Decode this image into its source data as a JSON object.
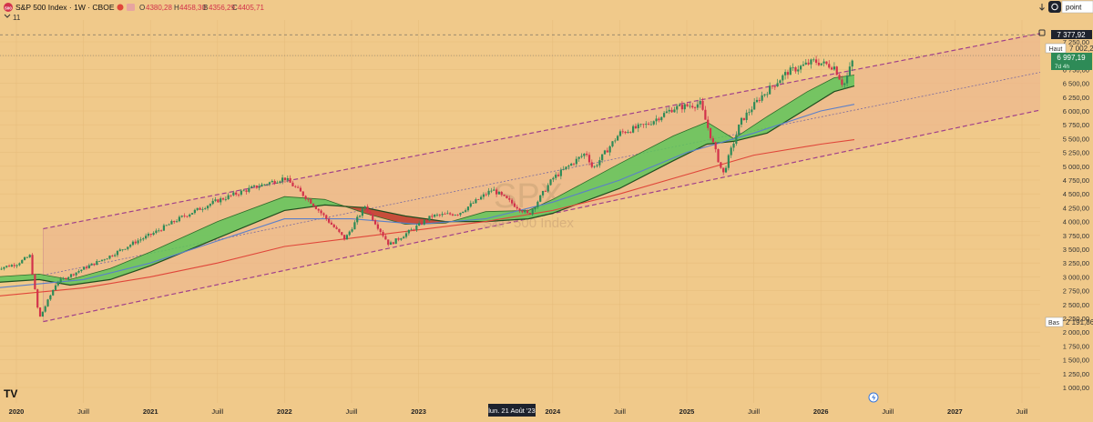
{
  "header": {
    "title": "S&P 500 Index · 1W · CBOE",
    "ohlc": [
      {
        "key": "O",
        "value": "4380,28"
      },
      {
        "key": "H",
        "value": "4458,30"
      },
      {
        "key": "B",
        "value": "4356,29"
      },
      {
        "key": "C",
        "value": "4405,71"
      }
    ],
    "indicator_count": "11",
    "search_value": "point"
  },
  "watermark": {
    "symbol": "SPX",
    "name": "S&P 500 Index"
  },
  "colors": {
    "background": "#f0c98a",
    "channel_fill": "#edb88e",
    "channel_line": "#a0408a",
    "up_candle": "#2e8b57",
    "down_candle": "#d2324b",
    "ribbon_green": "#5fc55a",
    "ribbon_red": "#c0392b",
    "ma_blue": "#5b7fc9",
    "ma_red": "#e0463a"
  },
  "price_labels": {
    "top_marker": "7 377,92",
    "haut_label": "Haut",
    "haut_value": "7 002,28",
    "current_value": "6 997,19",
    "current_sub": "7d 4h",
    "bas_label": "Bas",
    "bas_value": "2 191,86"
  },
  "crosshair_date": "lun. 21 Août '23",
  "chart_data": {
    "type": "candlestick",
    "title": "S&P 500 Index · 1W · CBOE",
    "ylim": [
      1000,
      7500
    ],
    "y_ticks": [
      "1 000,00",
      "1 250,00",
      "1 500,00",
      "1 750,00",
      "2 000,00",
      "2 250,00",
      "2 500,00",
      "2 750,00",
      "3 000,00",
      "3 250,00",
      "3 500,00",
      "3 750,00",
      "4 000,00",
      "4 250,00",
      "4 500,00",
      "4 750,00",
      "5 000,00",
      "5 250,00",
      "5 500,00",
      "5 750,00",
      "6 000,00",
      "6 250,00",
      "6 500,00",
      "6 750,00",
      "7 000,00",
      "7 250,00"
    ],
    "x_ticks": [
      {
        "label": "2020",
        "t": 2020.0,
        "bold": true
      },
      {
        "label": "Juill",
        "t": 2020.5
      },
      {
        "label": "2021",
        "t": 2021.0,
        "bold": true
      },
      {
        "label": "Juill",
        "t": 2021.5
      },
      {
        "label": "2022",
        "t": 2022.0,
        "bold": true
      },
      {
        "label": "Juill",
        "t": 2022.5
      },
      {
        "label": "2023",
        "t": 2023.0,
        "bold": true
      },
      {
        "label": "2024",
        "t": 2024.0,
        "bold": true
      },
      {
        "label": "Juill",
        "t": 2024.5
      },
      {
        "label": "2025",
        "t": 2025.0,
        "bold": true
      },
      {
        "label": "Juill",
        "t": 2025.5
      },
      {
        "label": "2026",
        "t": 2026.0,
        "bold": true
      },
      {
        "label": "Juill",
        "t": 2026.5
      },
      {
        "label": "2027",
        "t": 2027.0,
        "bold": true
      },
      {
        "label": "Juill",
        "t": 2027.5
      }
    ],
    "price_path": [
      [
        2019.85,
        3150
      ],
      [
        2020.0,
        3230
      ],
      [
        2020.1,
        3380
      ],
      [
        2020.17,
        2240
      ],
      [
        2020.3,
        2900
      ],
      [
        2020.5,
        3150
      ],
      [
        2020.7,
        3380
      ],
      [
        2020.9,
        3650
      ],
      [
        2021.0,
        3760
      ],
      [
        2021.25,
        4100
      ],
      [
        2021.5,
        4380
      ],
      [
        2021.75,
        4600
      ],
      [
        2022.0,
        4790
      ],
      [
        2022.2,
        4350
      ],
      [
        2022.45,
        3680
      ],
      [
        2022.6,
        4280
      ],
      [
        2022.78,
        3580
      ],
      [
        2022.95,
        3850
      ],
      [
        2023.1,
        4100
      ],
      [
        2023.3,
        4150
      ],
      [
        2023.55,
        4580
      ],
      [
        2023.82,
        4120
      ],
      [
        2024.0,
        4780
      ],
      [
        2024.25,
        5250
      ],
      [
        2024.3,
        4950
      ],
      [
        2024.5,
        5600
      ],
      [
        2024.7,
        5750
      ],
      [
        2024.9,
        6050
      ],
      [
        2025.1,
        6130
      ],
      [
        2025.27,
        4850
      ],
      [
        2025.4,
        5800
      ],
      [
        2025.55,
        6250
      ],
      [
        2025.75,
        6700
      ],
      [
        2025.95,
        6900
      ],
      [
        2026.1,
        6800
      ],
      [
        2026.17,
        6450
      ],
      [
        2026.25,
        6997
      ]
    ],
    "ma_fast": [
      [
        2019.85,
        3000
      ],
      [
        2020.17,
        3050
      ],
      [
        2020.4,
        2950
      ],
      [
        2020.7,
        3150
      ],
      [
        2021.0,
        3450
      ],
      [
        2021.5,
        4000
      ],
      [
        2022.0,
        4450
      ],
      [
        2022.3,
        4400
      ],
      [
        2022.6,
        4150
      ],
      [
        2022.9,
        3950
      ],
      [
        2023.2,
        3970
      ],
      [
        2023.5,
        4180
      ],
      [
        2023.82,
        4200
      ],
      [
        2024.0,
        4400
      ],
      [
        2024.5,
        5050
      ],
      [
        2024.9,
        5550
      ],
      [
        2025.15,
        5800
      ],
      [
        2025.35,
        5500
      ],
      [
        2025.6,
        5900
      ],
      [
        2025.9,
        6350
      ],
      [
        2026.1,
        6600
      ],
      [
        2026.25,
        6650
      ]
    ],
    "ma_slow": [
      [
        2019.85,
        2900
      ],
      [
        2020.17,
        2950
      ],
      [
        2020.4,
        2850
      ],
      [
        2020.7,
        2950
      ],
      [
        2021.0,
        3200
      ],
      [
        2021.5,
        3700
      ],
      [
        2022.0,
        4200
      ],
      [
        2022.3,
        4300
      ],
      [
        2022.6,
        4250
      ],
      [
        2022.9,
        4100
      ],
      [
        2023.2,
        4000
      ],
      [
        2023.5,
        4000
      ],
      [
        2023.82,
        4050
      ],
      [
        2024.0,
        4150
      ],
      [
        2024.5,
        4600
      ],
      [
        2024.9,
        5100
      ],
      [
        2025.15,
        5400
      ],
      [
        2025.35,
        5450
      ],
      [
        2025.6,
        5600
      ],
      [
        2025.9,
        6050
      ],
      [
        2026.1,
        6350
      ],
      [
        2026.25,
        6450
      ]
    ],
    "ma_blue": [
      [
        2019.85,
        2800
      ],
      [
        2020.5,
        2950
      ],
      [
        2021.0,
        3250
      ],
      [
        2021.5,
        3650
      ],
      [
        2022.0,
        4050
      ],
      [
        2022.5,
        4050
      ],
      [
        2023.0,
        3950
      ],
      [
        2023.5,
        4050
      ],
      [
        2024.0,
        4350
      ],
      [
        2024.5,
        4750
      ],
      [
        2025.0,
        5250
      ],
      [
        2025.5,
        5600
      ],
      [
        2026.0,
        6000
      ],
      [
        2026.25,
        6120
      ]
    ],
    "ma_red": [
      [
        2019.85,
        2650
      ],
      [
        2020.5,
        2800
      ],
      [
        2021.0,
        3000
      ],
      [
        2021.5,
        3250
      ],
      [
        2022.0,
        3550
      ],
      [
        2022.5,
        3700
      ],
      [
        2023.0,
        3850
      ],
      [
        2023.5,
        4000
      ],
      [
        2024.0,
        4200
      ],
      [
        2024.5,
        4500
      ],
      [
        2025.0,
        4850
      ],
      [
        2025.5,
        5200
      ],
      [
        2026.0,
        5400
      ],
      [
        2026.25,
        5480
      ]
    ],
    "channel": {
      "upper": [
        [
          2020.2,
          3870
        ],
        [
          2027.8,
          7480
        ]
      ],
      "lower": [
        [
          2020.2,
          2190
        ],
        [
          2027.8,
          6100
        ]
      ],
      "mid": [
        [
          2020.2,
          3030
        ],
        [
          2027.8,
          6780
        ]
      ]
    },
    "hlines": [
      7377.92,
      7002.28
    ]
  }
}
